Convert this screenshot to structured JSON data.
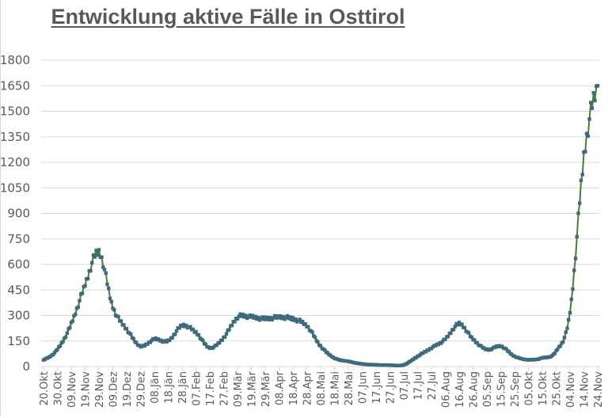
{
  "chart_data": {
    "type": "line",
    "title": "Entwicklung aktive Fälle in Osttirol",
    "xlabel": "",
    "ylabel": "",
    "ylim": [
      0,
      1800
    ],
    "yticks": [
      0,
      150,
      300,
      450,
      600,
      750,
      900,
      1050,
      1200,
      1350,
      1500,
      1650,
      1800
    ],
    "grid": true,
    "legend": null,
    "categories": [
      "20.Okt",
      "30.Okt",
      "09.Nov",
      "19.Nov",
      "29.Nov",
      "09.Dez",
      "19.Dez",
      "29.Dez",
      "08.Jän",
      "18.Jän",
      "28.Jän",
      "07.Feb",
      "17.Feb",
      "27.Feb",
      "09.Mär",
      "19.Mär",
      "29.Mär",
      "08.Apr",
      "18.Apr",
      "28.Apr",
      "08.Mai",
      "18.Mai",
      "28.Mai",
      "07.Jun",
      "17.Jun",
      "27.Jun",
      "07.Jul",
      "17.Jul",
      "27.Jul",
      "06.Aug",
      "16.Aug",
      "26.Aug",
      "05.Sep",
      "15.Sep",
      "25.Sep",
      "05.Okt",
      "15.Okt",
      "25.Okt",
      "04.Nov",
      "14.Nov",
      "24.Nov"
    ],
    "series": [
      {
        "name": "aktive Fälle",
        "line_color": "#4e7a2e",
        "marker_color": "#3d6b7d",
        "values": [
          40,
          100,
          250,
          480,
          670,
          350,
          220,
          120,
          160,
          150,
          240,
          200,
          110,
          170,
          290,
          290,
          280,
          290,
          280,
          240,
          120,
          50,
          30,
          15,
          10,
          8,
          10,
          60,
          110,
          160,
          250,
          160,
          100,
          120,
          60,
          40,
          50,
          90,
          320,
          1230,
          1650
        ]
      }
    ]
  }
}
